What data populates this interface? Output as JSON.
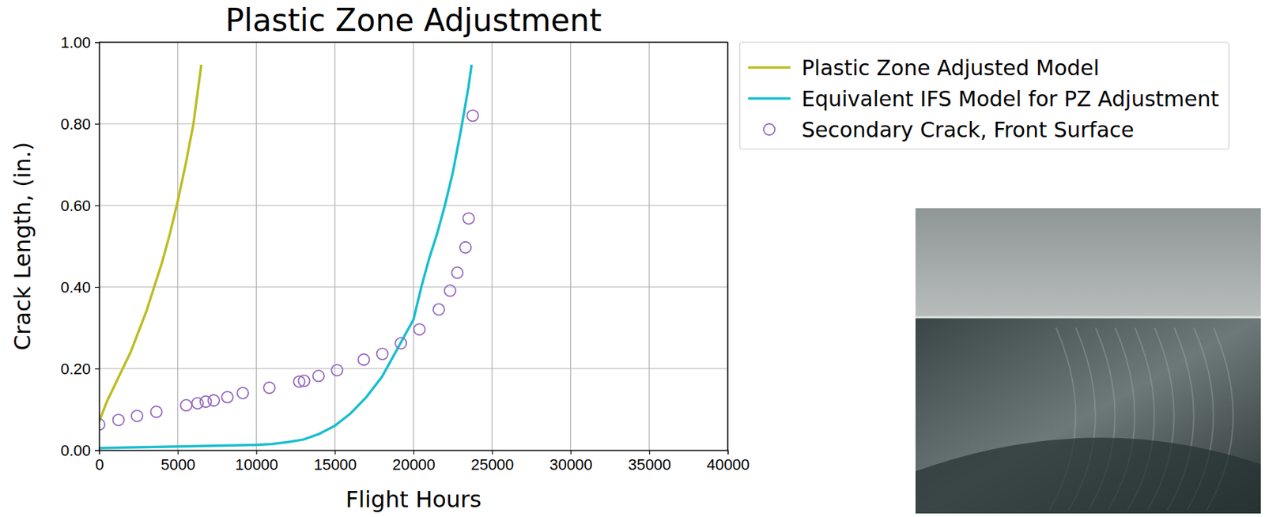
{
  "chart_data": {
    "type": "line",
    "title": "Plastic Zone Adjustment",
    "x_label": "Flight Hours",
    "y_label": "Crack Length, (in.)",
    "xlim": [
      0,
      40000
    ],
    "xticks": [
      0,
      5000,
      10000,
      15000,
      20000,
      25000,
      30000,
      35000,
      40000
    ],
    "ylim": [
      0,
      1.0
    ],
    "yticks": [
      {
        "value": 0,
        "label": "0.00"
      },
      {
        "value": 0.2,
        "label": "0.20"
      },
      {
        "value": 0.4,
        "label": "0.40"
      },
      {
        "value": 0.6,
        "label": "0.60"
      },
      {
        "value": 0.8,
        "label": "0.80"
      },
      {
        "value": 1.0,
        "label": "1.00"
      }
    ],
    "grid": true,
    "legend": "right",
    "series": [
      {
        "name": "Plastic Zone Adjusted Model",
        "color": "#bcbd22",
        "type": "line",
        "line_style": "solid",
        "x": [
          0,
          500,
          1000,
          1500,
          2000,
          2500,
          3000,
          3500,
          4000,
          4500,
          5000,
          5500,
          6000,
          6500
        ],
        "values": [
          0.07,
          0.12,
          0.16,
          0.2,
          0.24,
          0.29,
          0.34,
          0.4,
          0.46,
          0.53,
          0.61,
          0.7,
          0.8,
          0.945
        ]
      },
      {
        "name": "Equivalent IFS Model for PZ Adjustment",
        "color": "#17becf",
        "type": "line",
        "line_style": "solid",
        "x": [
          0,
          5000,
          10000,
          11000,
          12000,
          13000,
          14000,
          15000,
          16000,
          17000,
          18000,
          19000,
          20000,
          20500,
          21000,
          21500,
          22000,
          22500,
          23000,
          23500,
          23700
        ],
        "values": [
          0.005,
          0.009,
          0.013,
          0.015,
          0.02,
          0.026,
          0.04,
          0.06,
          0.09,
          0.13,
          0.18,
          0.25,
          0.32,
          0.4,
          0.47,
          0.53,
          0.6,
          0.68,
          0.78,
          0.89,
          0.945
        ]
      },
      {
        "name": "Secondary Crack, Front Surface",
        "color": "#9467bd",
        "type": "scatter",
        "marker": "circle",
        "x": [
          0,
          1230,
          2410,
          3640,
          5540,
          6260,
          6780,
          7290,
          8160,
          9140,
          10830,
          12730,
          13040,
          13960,
          15140,
          16840,
          18020,
          19200,
          20380,
          21610,
          22330,
          22790,
          23310,
          23510,
          23770
        ],
        "values": [
          0.063,
          0.074,
          0.084,
          0.094,
          0.11,
          0.115,
          0.119,
          0.122,
          0.13,
          0.14,
          0.153,
          0.168,
          0.17,
          0.182,
          0.196,
          0.222,
          0.236,
          0.262,
          0.296,
          0.345,
          0.391,
          0.435,
          0.497,
          0.568,
          0.82
        ]
      }
    ]
  }
}
